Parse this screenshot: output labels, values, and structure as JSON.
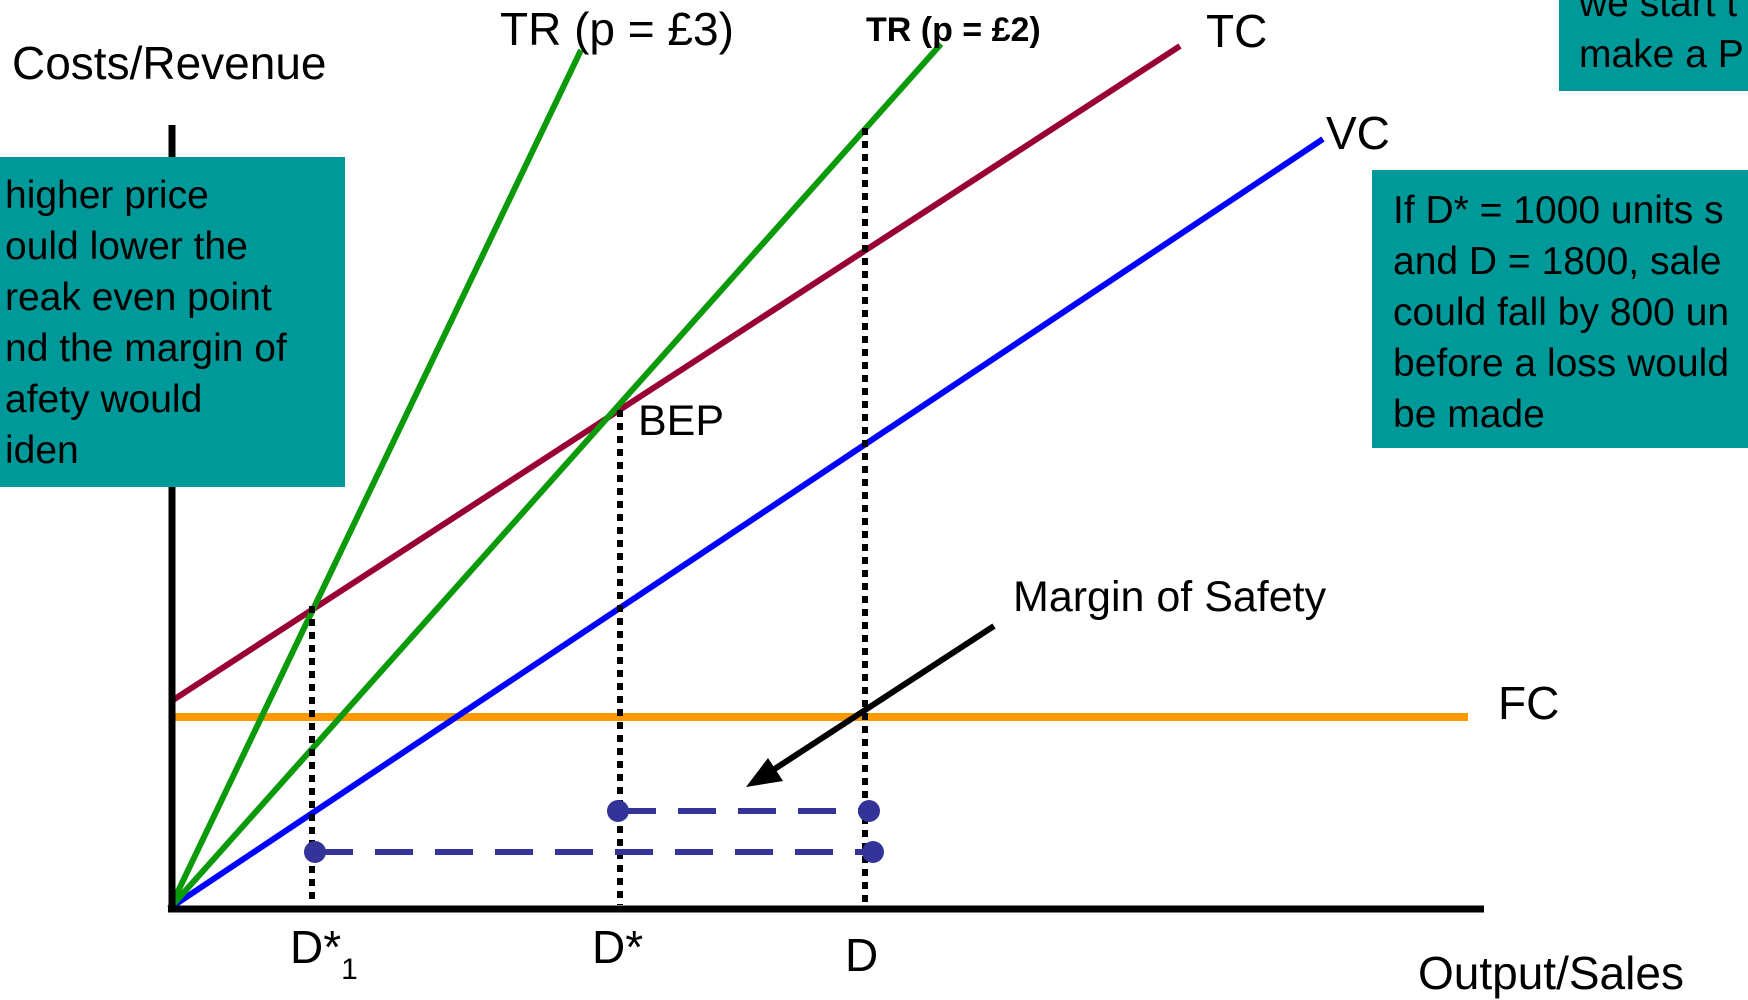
{
  "labels": {
    "y_axis": "Costs/Revenue",
    "x_axis": "Output/Sales",
    "tr_high": "TR (p = £3)",
    "tr_low": "TR (p = £2)",
    "tc": "TC",
    "vc": "VC",
    "fc": "FC",
    "bep": "BEP",
    "margin_of_safety": "Margin of Safety",
    "d_star_1_main": "D*",
    "d_star_1_sub": "1",
    "d_star": "D*",
    "d": "D"
  },
  "boxes": {
    "left": [
      "higher price",
      "ould lower the",
      "reak even point",
      "nd the margin of",
      "afety would",
      "iden"
    ],
    "right": [
      "If D* = 1000 units s",
      "and D = 1800, sale",
      "could fall by 800 un",
      "before a loss would",
      "be made"
    ],
    "top_right": [
      "we start t",
      "make a P"
    ]
  },
  "colors": {
    "tr": "#0a9a0a",
    "tc": "#990033",
    "vc": "#0000ff",
    "fc": "#ff9900",
    "axis": "#000000",
    "margin_bar": "#333399",
    "box_fill": "#009999"
  }
}
